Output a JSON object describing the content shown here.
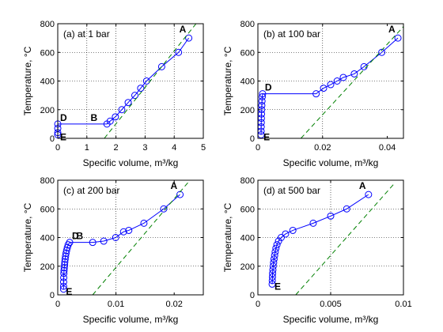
{
  "chart_data": [
    {
      "type": "line",
      "title": "(a) at 1 bar",
      "xlabel": "Specific volume, m³/kg",
      "ylabel": "Temperature, °C",
      "xlim": [
        0,
        5
      ],
      "ylim": [
        0,
        800
      ],
      "xticks": [
        0,
        1,
        2,
        3,
        4,
        5
      ],
      "xtick_labels": [
        "0",
        "1",
        "2",
        "3",
        "4",
        "5"
      ],
      "yticks": [
        0,
        200,
        400,
        600,
        800
      ],
      "ytick_labels": [
        "0",
        "200",
        "400",
        "600",
        "800"
      ],
      "grid": true,
      "series": [
        {
          "color": "#0000ff",
          "marker": "circle",
          "x": [
            4.5,
            4.15,
            3.57,
            3.05,
            2.85,
            2.65,
            2.42,
            2.2,
            1.98,
            1.8,
            1.69,
            0.0011,
            0.00104,
            0.001,
            0.001
          ],
          "y": [
            700,
            600,
            500,
            400,
            350,
            300,
            250,
            200,
            150,
            120,
            100,
            100,
            70,
            40,
            25
          ]
        },
        {
          "color": "#008000",
          "style": "dashed",
          "x": [
            1.6,
            4.75
          ],
          "y": [
            0,
            800
          ]
        }
      ],
      "point_labels": [
        {
          "text": "A",
          "x": 4.5,
          "y": 700
        },
        {
          "text": "B",
          "x": 1.69,
          "y": 100
        },
        {
          "text": "D",
          "x": 0.0011,
          "y": 100
        },
        {
          "text": "E",
          "x": 0.001,
          "y": 25
        }
      ]
    },
    {
      "type": "line",
      "title": "(b) at 100 bar",
      "xlabel": "Specific volume, m³/kg",
      "ylabel": "Temperature, °C",
      "xlim": [
        0,
        0.045
      ],
      "ylim": [
        0,
        800
      ],
      "xticks": [
        0,
        0.02,
        0.04
      ],
      "xtick_labels": [
        "0",
        "0.02",
        "0.04"
      ],
      "yticks": [
        0,
        200,
        400,
        600,
        800
      ],
      "ytick_labels": [
        "0",
        "200",
        "400",
        "600",
        "800"
      ],
      "grid": true,
      "series": [
        {
          "color": "#0000ff",
          "marker": "circle",
          "x": [
            0.0433,
            0.0383,
            0.0328,
            0.0298,
            0.0264,
            0.0245,
            0.0225,
            0.0203,
            0.018,
            0.00145,
            0.00135,
            0.00127,
            0.00121,
            0.00116,
            0.00111,
            0.00107,
            0.00104,
            0.00102,
            0.001,
            0.001
          ],
          "y": [
            700,
            600,
            500,
            450,
            425,
            400,
            375,
            350,
            311,
            311,
            290,
            260,
            230,
            200,
            170,
            140,
            110,
            80,
            50,
            25
          ]
        },
        {
          "color": "#008000",
          "style": "dashed",
          "x": [
            0.0133,
            0.045
          ],
          "y": [
            0,
            780
          ]
        }
      ],
      "point_labels": [
        {
          "text": "A",
          "x": 0.0433,
          "y": 700
        },
        {
          "text": "D",
          "x": 0.00145,
          "y": 311
        },
        {
          "text": "E",
          "x": 0.001,
          "y": 25
        }
      ]
    },
    {
      "type": "line",
      "title": "(c) at 200 bar",
      "xlabel": "Specific volume, m³/kg",
      "ylabel": "Temperature, °C",
      "xlim": [
        0,
        0.025
      ],
      "ylim": [
        0,
        800
      ],
      "xticks": [
        0,
        0.01,
        0.02
      ],
      "xtick_labels": [
        "0",
        "0.01",
        "0.02"
      ],
      "yticks": [
        0,
        200,
        400,
        600,
        800
      ],
      "ytick_labels": [
        "0",
        "200",
        "400",
        "600",
        "800"
      ],
      "grid": true,
      "series": [
        {
          "color": "#0000ff",
          "marker": "circle",
          "x": [
            0.021,
            0.0182,
            0.0148,
            0.0122,
            0.0113,
            0.00995,
            0.0079,
            0.006,
            0.00204,
            0.0018,
            0.00165,
            0.00152,
            0.00142,
            0.00134,
            0.00127,
            0.00121,
            0.00117,
            0.00112,
            0.00108,
            0.00105,
            0.00103,
            0.00101,
            0.001,
            0.001
          ],
          "y": [
            700,
            600,
            500,
            450,
            440,
            400,
            375,
            366,
            366,
            350,
            330,
            310,
            290,
            270,
            250,
            230,
            210,
            190,
            170,
            150,
            120,
            90,
            60,
            40
          ]
        },
        {
          "color": "#008000",
          "style": "dashed",
          "x": [
            0.006,
            0.0225
          ],
          "y": [
            0,
            790
          ]
        }
      ],
      "point_labels": [
        {
          "text": "A",
          "x": 0.021,
          "y": 700
        },
        {
          "text": "B",
          "x": 0.006,
          "y": 366
        },
        {
          "text": "D",
          "x": 0.00204,
          "y": 366
        },
        {
          "text": "E",
          "x": 0.001,
          "y": 40
        }
      ]
    },
    {
      "type": "line",
      "title": "(d) at 500 bar",
      "xlabel": "Specific volume, m³/kg",
      "ylabel": "Temperature, °C",
      "xlim": [
        0,
        0.01
      ],
      "ylim": [
        0,
        800
      ],
      "xticks": [
        0,
        0.005,
        0.01
      ],
      "xtick_labels": [
        "0",
        "0.005",
        "0.01"
      ],
      "yticks": [
        0,
        200,
        400,
        600,
        800
      ],
      "ytick_labels": [
        "0",
        "200",
        "400",
        "600",
        "800"
      ],
      "grid": true,
      "series": [
        {
          "color": "#0000ff",
          "marker": "circle",
          "x": [
            0.0076,
            0.0061,
            0.005,
            0.0038,
            0.0024,
            0.0019,
            0.0016,
            0.00142,
            0.00131,
            0.00124,
            0.00119,
            0.00115,
            0.00111,
            0.00108,
            0.00105,
            0.00103,
            0.00101,
            0.001,
            0.00099,
            0.00098
          ],
          "y": [
            700,
            600,
            550,
            500,
            450,
            425,
            400,
            375,
            350,
            325,
            300,
            275,
            250,
            225,
            200,
            175,
            150,
            125,
            100,
            75
          ]
        },
        {
          "color": "#008000",
          "style": "dashed",
          "x": [
            0.0026,
            0.0094
          ],
          "y": [
            0,
            780
          ]
        }
      ],
      "point_labels": [
        {
          "text": "A",
          "x": 0.0076,
          "y": 700
        },
        {
          "text": "E",
          "x": 0.00098,
          "y": 75
        }
      ]
    }
  ]
}
